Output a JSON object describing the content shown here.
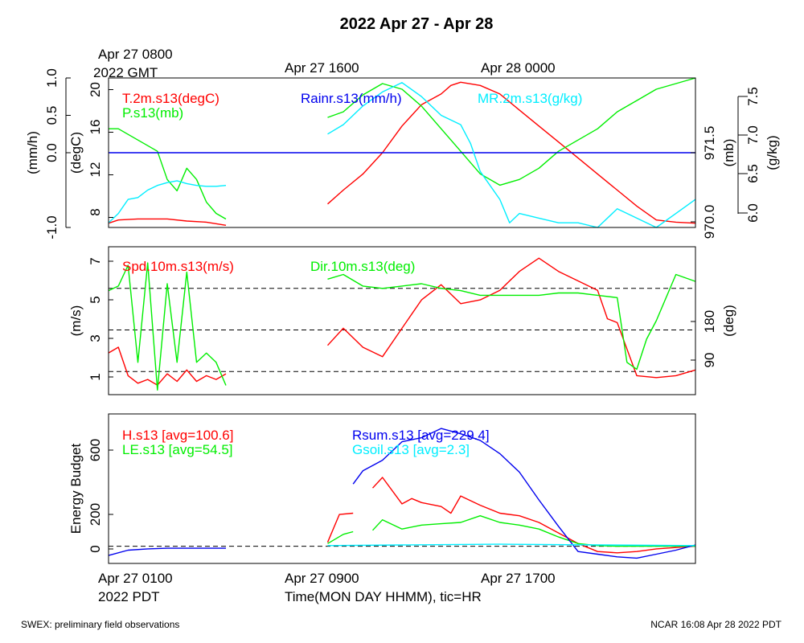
{
  "title": "2022 Apr 27 - Apr 28",
  "top_time_labels": [
    {
      "lines": [
        "Apr 27 0800",
        "2022 GMT"
      ]
    },
    {
      "lines": [
        "Apr 27 1600"
      ]
    },
    {
      "lines": [
        "Apr 28 0000"
      ]
    }
  ],
  "bottom_time_labels": [
    {
      "lines": [
        "Apr 27 0100",
        "2022 PDT"
      ]
    },
    {
      "lines": [
        "Apr 27 0900"
      ]
    },
    {
      "lines": [
        "Apr 27 1700"
      ]
    }
  ],
  "xlabel": "Time(MON DAY HHMM), tic=HR",
  "footer_left": "SWEX: preliminary field observations",
  "footer_right": "NCAR 16:08 Apr 28 2022 PDT",
  "colors": {
    "red": "#ff0000",
    "green": "#00ee00",
    "blue": "#0000ee",
    "cyan": "#00eeff"
  },
  "chart_data": [
    {
      "type": "line",
      "panel": "state",
      "x_unit": "hours since Apr 27 0100 PDT",
      "xlim": [
        0,
        30
      ],
      "legend": [
        "T.2m.s13(degC)",
        "P.s13(mb)",
        "Rainr.s13(mm/h)",
        "MR.2m.s13(g/kg)"
      ],
      "axes": {
        "rain": {
          "label": "(mm/h)",
          "ylim": [
            -1.0,
            1.0
          ],
          "ticks": [
            "-1.0",
            "0.0",
            "0.5",
            "1.0"
          ]
        },
        "temperature": {
          "label": "(degC)",
          "ylim": [
            7,
            21
          ],
          "ticks": [
            "8",
            "12",
            "16",
            "20"
          ]
        },
        "pressure": {
          "label": "(mb)",
          "ylim": [
            969.85,
            972.5
          ],
          "ticks": [
            "970.0",
            "971.5"
          ]
        },
        "mixing_ratio": {
          "label": "(g/kg)",
          "ylim": [
            6.0,
            7.6
          ],
          "ticks": [
            "6.0",
            "6.5",
            "7.0",
            "7.5"
          ]
        }
      },
      "series": [
        {
          "name": "T.2m.s13(degC)",
          "color": "red",
          "axis": "temperature",
          "segments": [
            {
              "x": [
                0,
                0.5,
                1.5,
                2.5,
                3,
                4,
                5,
                6
              ],
              "y": [
                7.4,
                7.7,
                7.8,
                7.8,
                7.8,
                7.6,
                7.5,
                7.2
              ]
            },
            {
              "x": [
                11.2,
                12,
                13,
                14,
                15,
                16,
                17,
                17.5,
                18,
                19,
                20,
                21,
                22,
                23,
                24,
                25,
                26,
                27,
                28,
                29,
                30
              ],
              "y": [
                9.2,
                10.5,
                12,
                14,
                16.5,
                18.5,
                19.5,
                20.3,
                20.6,
                20.3,
                19.5,
                18,
                16.5,
                15,
                13.5,
                12,
                10.5,
                9,
                7.7,
                7.5,
                7.4
              ]
            }
          ]
        },
        {
          "name": "P.s13(mb)",
          "color": "green",
          "axis": "pressure",
          "segments": [
            {
              "x": [
                0,
                0.5,
                1,
                1.5,
                2,
                2.5,
                3,
                3.5,
                4,
                4.5,
                5,
                5.5,
                6
              ],
              "y": [
                971.6,
                971.6,
                971.5,
                971.4,
                971.3,
                971.2,
                970.7,
                970.5,
                970.9,
                970.7,
                970.3,
                970.1,
                970.0
              ]
            },
            {
              "x": [
                11.2,
                12,
                13,
                14,
                15,
                16,
                17,
                18,
                19,
                20,
                21,
                22,
                23,
                24,
                25,
                26,
                27,
                28,
                29,
                30
              ],
              "y": [
                971.8,
                971.9,
                972.2,
                972.4,
                972.3,
                972.0,
                971.6,
                971.2,
                970.8,
                970.6,
                970.7,
                970.9,
                971.2,
                971.4,
                971.6,
                971.9,
                972.1,
                972.3,
                972.4,
                972.5
              ]
            }
          ]
        },
        {
          "name": "Rainr.s13(mm/h)",
          "color": "blue",
          "axis": "rain",
          "segments": [
            {
              "x": [
                0,
                30
              ],
              "y": [
                0.0,
                0.0
              ]
            }
          ]
        },
        {
          "name": "MR.2m.s13(g/kg)",
          "color": "cyan",
          "axis": "mixing_ratio",
          "segments": [
            {
              "x": [
                0,
                0.5,
                1,
                1.5,
                2,
                2.5,
                3,
                3.5,
                4,
                4.5,
                5,
                5.5,
                6
              ],
              "y": [
                6.05,
                6.15,
                6.3,
                6.32,
                6.4,
                6.45,
                6.48,
                6.5,
                6.47,
                6.45,
                6.44,
                6.44,
                6.45
              ]
            },
            {
              "x": [
                11.2,
                12,
                13,
                14,
                15,
                16,
                17,
                18,
                18.5,
                19,
                20,
                20.5,
                21,
                22,
                23,
                24,
                25,
                26,
                27,
                28,
                29,
                30
              ],
              "y": [
                7.0,
                7.1,
                7.3,
                7.45,
                7.55,
                7.4,
                7.2,
                7.1,
                6.9,
                6.6,
                6.3,
                6.05,
                6.15,
                6.1,
                6.05,
                6.05,
                6.0,
                6.2,
                6.1,
                6.0,
                6.15,
                6.3
              ]
            }
          ]
        }
      ],
      "reference_lines": [
        {
          "axis": "rain",
          "y": 0.0,
          "style": "dashed"
        }
      ]
    },
    {
      "type": "line",
      "panel": "wind",
      "x_unit": "hours since Apr 27 0100 PDT",
      "xlim": [
        0,
        30
      ],
      "legend": [
        "Spd.10m.s13(m/s)",
        "Dir.10m.s13(deg)"
      ],
      "axes": {
        "speed": {
          "label": "(m/s)",
          "ylim": [
            0,
            7.8
          ],
          "ticks": [
            "1",
            "3",
            "5",
            "7"
          ]
        },
        "direction": {
          "label": "(deg)",
          "ylim": [
            40,
            360
          ],
          "ticks": [
            "90",
            "180"
          ]
        }
      },
      "series": [
        {
          "name": "Spd.10m.s13(m/s)",
          "color": "red",
          "axis": "speed",
          "segments": [
            {
              "x": [
                0,
                0.5,
                1,
                1.5,
                2,
                2.5,
                3,
                3.5,
                4,
                4.5,
                5,
                5.5,
                6
              ],
              "y": [
                2.2,
                2.5,
                1.0,
                0.6,
                0.8,
                0.5,
                1.1,
                0.7,
                1.3,
                0.7,
                1.0,
                0.8,
                1.1
              ]
            },
            {
              "x": [
                11.2,
                12,
                13,
                14,
                15,
                16,
                17,
                18,
                19,
                20,
                21,
                22,
                23,
                24,
                25,
                25.5,
                26,
                27,
                28,
                29,
                30
              ],
              "y": [
                2.6,
                3.5,
                2.5,
                2.0,
                3.5,
                5.0,
                5.8,
                4.8,
                5.0,
                5.5,
                6.5,
                7.2,
                6.5,
                6.0,
                5.5,
                4.0,
                3.8,
                1.0,
                0.9,
                1.0,
                1.3
              ]
            }
          ]
        },
        {
          "name": "Dir.10m.s13(deg)",
          "color": "green",
          "axis": "direction",
          "segments": [
            {
              "x": [
                0,
                0.5,
                1,
                1.5,
                2,
                2.5,
                3,
                3.5,
                4,
                4.5,
                5,
                5.5,
                6
              ],
              "y": [
                265,
                275,
                320,
                110,
                325,
                50,
                280,
                110,
                305,
                110,
                130,
                110,
                60
              ]
            },
            {
              "x": [
                11.2,
                12,
                13,
                14,
                15,
                16,
                17,
                18,
                19,
                20,
                21,
                22,
                23,
                24,
                25,
                26,
                26.5,
                27,
                27.5,
                28,
                29,
                30
              ],
              "y": [
                290,
                300,
                275,
                270,
                275,
                280,
                270,
                265,
                255,
                255,
                255,
                255,
                260,
                260,
                255,
                250,
                110,
                95,
                160,
                200,
                300,
                285
              ]
            }
          ]
        }
      ],
      "reference_lines": [
        {
          "axis": "direction",
          "y": 90,
          "style": "dashed"
        },
        {
          "axis": "direction",
          "y": 180,
          "style": "dashed"
        },
        {
          "axis": "direction",
          "y": 270,
          "style": "dashed"
        }
      ]
    },
    {
      "type": "line",
      "panel": "energy",
      "x_unit": "hours since Apr 27 0100 PDT",
      "xlim": [
        0,
        30
      ],
      "ylabel": "Energy Budget",
      "ylim": [
        -130,
        1000
      ],
      "yticks": [
        "0",
        "200",
        "600"
      ],
      "legend": [
        "H.s13 [avg=100.6]",
        "LE.s13 [avg=54.5]",
        "Rsum.s13 [avg=229.4]",
        "Gsoil.s13 [avg=2.3]"
      ],
      "series": [
        {
          "name": "H.s13 [avg=100.6]",
          "color": "red",
          "segments": [
            {
              "x": [
                11.2,
                11.8,
                12.5
              ],
              "y": [
                30,
                240,
                250
              ]
            },
            {
              "x": [
                13.5,
                14,
                15,
                15.5,
                16,
                17,
                17.5,
                18,
                19,
                20,
                21,
                22,
                23,
                24,
                25,
                26,
                27,
                28,
                29,
                30
              ],
              "y": [
                440,
                520,
                320,
                360,
                330,
                300,
                250,
                380,
                310,
                250,
                230,
                180,
                100,
                20,
                -40,
                -50,
                -40,
                -20,
                -10,
                0
              ]
            }
          ]
        },
        {
          "name": "LE.s13 [avg=54.5]",
          "color": "green",
          "segments": [
            {
              "x": [
                11.2,
                12,
                12.5
              ],
              "y": [
                20,
                90,
                110
              ]
            },
            {
              "x": [
                13.5,
                14,
                15,
                16,
                17,
                18,
                19,
                20,
                21,
                22,
                23,
                24,
                25,
                26,
                27,
                28,
                29,
                30
              ],
              "y": [
                120,
                200,
                130,
                160,
                170,
                180,
                230,
                180,
                160,
                130,
                70,
                20,
                5,
                0,
                0,
                0,
                0,
                0
              ]
            }
          ]
        },
        {
          "name": "Rsum.s13 [avg=229.4]",
          "color": "blue",
          "segments": [
            {
              "x": [
                0,
                1,
                2,
                3,
                4,
                5,
                6
              ],
              "y": [
                -70,
                -30,
                -20,
                -15,
                -15,
                -15,
                -15
              ]
            },
            {
              "x": [
                12.5,
                13,
                14,
                15,
                16,
                17,
                18,
                19,
                20,
                21,
                22,
                23,
                24,
                25,
                26,
                27,
                28,
                29,
                30
              ],
              "y": [
                470,
                570,
                650,
                790,
                820,
                890,
                850,
                800,
                700,
                560,
                350,
                150,
                -40,
                -60,
                -80,
                -90,
                -60,
                -30,
                10
              ]
            }
          ]
        },
        {
          "name": "Gsoil.s13 [avg=2.3]",
          "color": "cyan",
          "segments": [
            {
              "x": [
                11.2,
                15,
                20,
                25,
                30
              ],
              "y": [
                5,
                10,
                15,
                10,
                5
              ]
            }
          ]
        }
      ],
      "reference_lines": [
        {
          "y": 0,
          "style": "dashed"
        }
      ]
    }
  ]
}
